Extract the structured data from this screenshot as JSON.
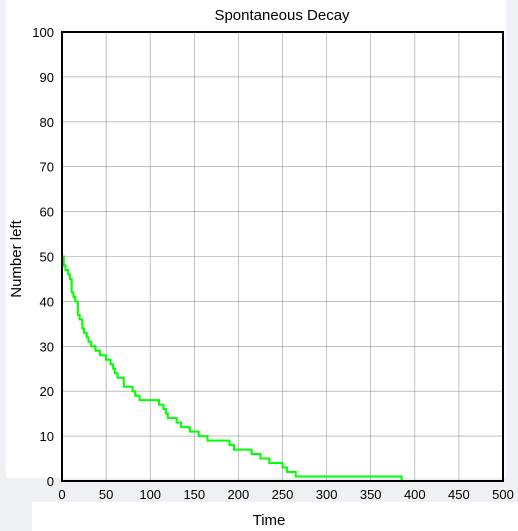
{
  "chart_data": {
    "type": "line",
    "title": "Spontaneous Decay",
    "xlabel": "Time",
    "ylabel": "Number left",
    "xlim": [
      0,
      500
    ],
    "ylim": [
      0,
      100
    ],
    "xticks": [
      0,
      50,
      100,
      150,
      200,
      250,
      300,
      350,
      400,
      450,
      500
    ],
    "yticks": [
      0,
      10,
      20,
      30,
      40,
      50,
      60,
      70,
      80,
      90,
      100
    ],
    "grid": true,
    "line_color": "#00ff00",
    "series": [
      {
        "x": [
          0,
          2,
          4,
          7,
          9,
          11,
          13,
          15,
          18,
          20,
          23,
          25,
          28,
          30,
          33,
          35,
          38,
          40,
          43,
          45,
          48,
          50,
          55,
          58,
          60,
          63,
          65,
          70,
          73,
          75,
          80,
          83,
          85,
          88,
          90,
          95,
          100,
          110,
          115,
          118,
          120,
          123,
          125,
          130,
          133,
          135,
          140,
          145,
          150,
          155,
          160,
          165,
          170,
          175,
          180,
          190,
          195,
          200,
          215,
          220,
          225,
          230,
          235,
          240,
          245,
          250,
          255,
          260,
          265,
          270,
          380,
          385,
          390,
          395,
          400,
          450,
          500
        ],
        "y": [
          50,
          48,
          47,
          46,
          45,
          42,
          41,
          40,
          37,
          36,
          34,
          33,
          32,
          31,
          30,
          30,
          29,
          29,
          28,
          28,
          28,
          27,
          26,
          25,
          24,
          23,
          23,
          21,
          21,
          21,
          20,
          19,
          19,
          18,
          18,
          18,
          18,
          17,
          16,
          15,
          14,
          14,
          14,
          13,
          13,
          12,
          12,
          11,
          11,
          10,
          10,
          9,
          9,
          9,
          9,
          8,
          7,
          7,
          6,
          6,
          5,
          5,
          4,
          4,
          4,
          3,
          2,
          2,
          1,
          1,
          1,
          0,
          0,
          0,
          0,
          0,
          0
        ]
      }
    ]
  }
}
